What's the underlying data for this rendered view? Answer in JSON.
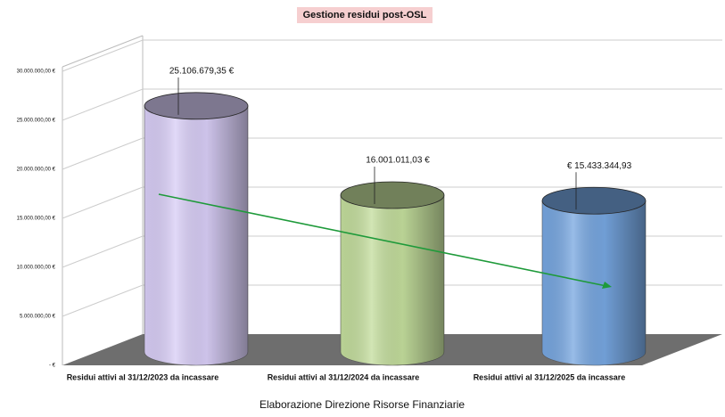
{
  "chart_data": {
    "type": "cylinder-bar",
    "title": "Gestione residui post-OSL",
    "caption": "Elaborazione Direzione Risorse Finanziarie",
    "categories": [
      "Residui attivi al 31/12/2023 da incassare",
      "Residui attivi al 31/12/2024 da incassare",
      "Residui attivi al 31/12/2025 da incassare"
    ],
    "values": [
      25106679.35,
      16001011.03,
      15433344.93
    ],
    "value_labels": [
      "25.106.679,35 €",
      "16.001.011,03 €",
      "€ 15.433.344,93"
    ],
    "colors": [
      "#d8cdf6",
      "#c3dd9c",
      "#76a6e0"
    ],
    "ylim": [
      0,
      30000000
    ],
    "yticks": [
      {
        "value": 0,
        "label": "- €"
      },
      {
        "value": 5000000,
        "label": "5.000.000,00 €"
      },
      {
        "value": 10000000,
        "label": "10.000.000,00 €"
      },
      {
        "value": 15000000,
        "label": "15.000.000,00 €"
      },
      {
        "value": 20000000,
        "label": "20.000.000,00 €"
      },
      {
        "value": 25000000,
        "label": "25.000.000,00 €"
      },
      {
        "value": 30000000,
        "label": "30.000.000,00 €"
      }
    ],
    "grid": true
  }
}
